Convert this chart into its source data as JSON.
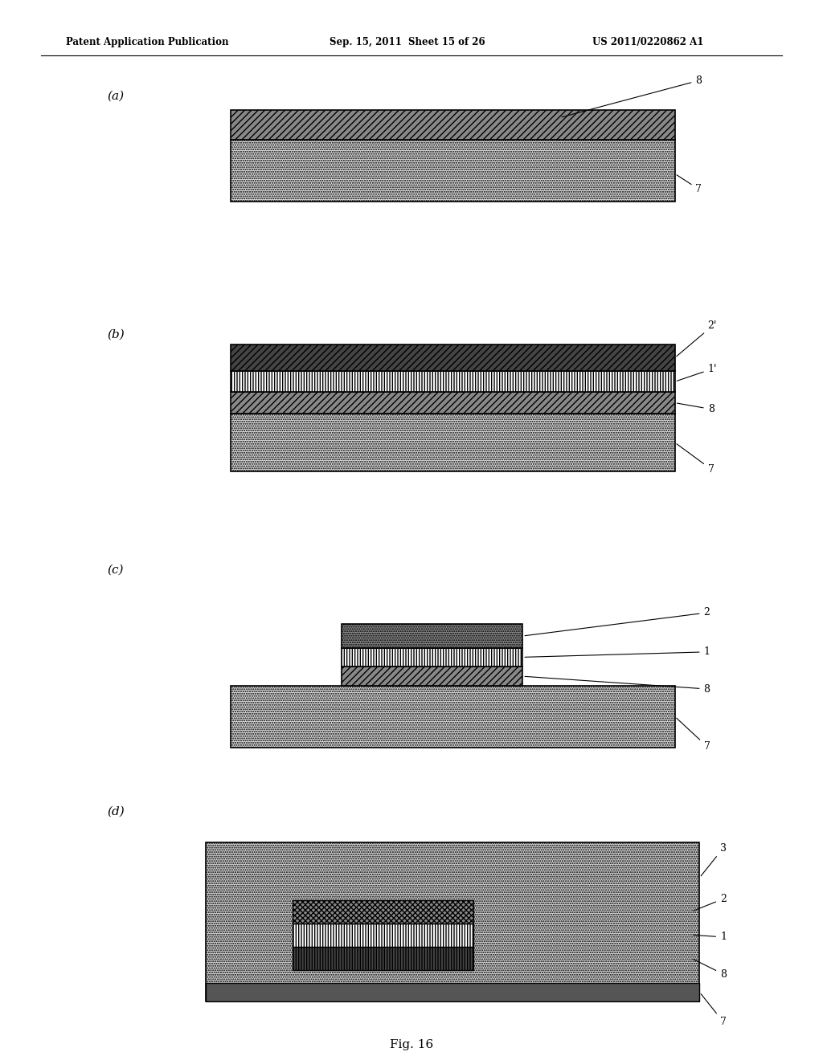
{
  "bg_color": "#ffffff",
  "header_left": "Patent Application Publication",
  "header_mid": "Sep. 15, 2011  Sheet 15 of 26",
  "header_right": "US 2011/0220862 A1",
  "footer": "Fig. 16",
  "panels": [
    "(a)",
    "(b)",
    "(c)",
    "(d)"
  ]
}
